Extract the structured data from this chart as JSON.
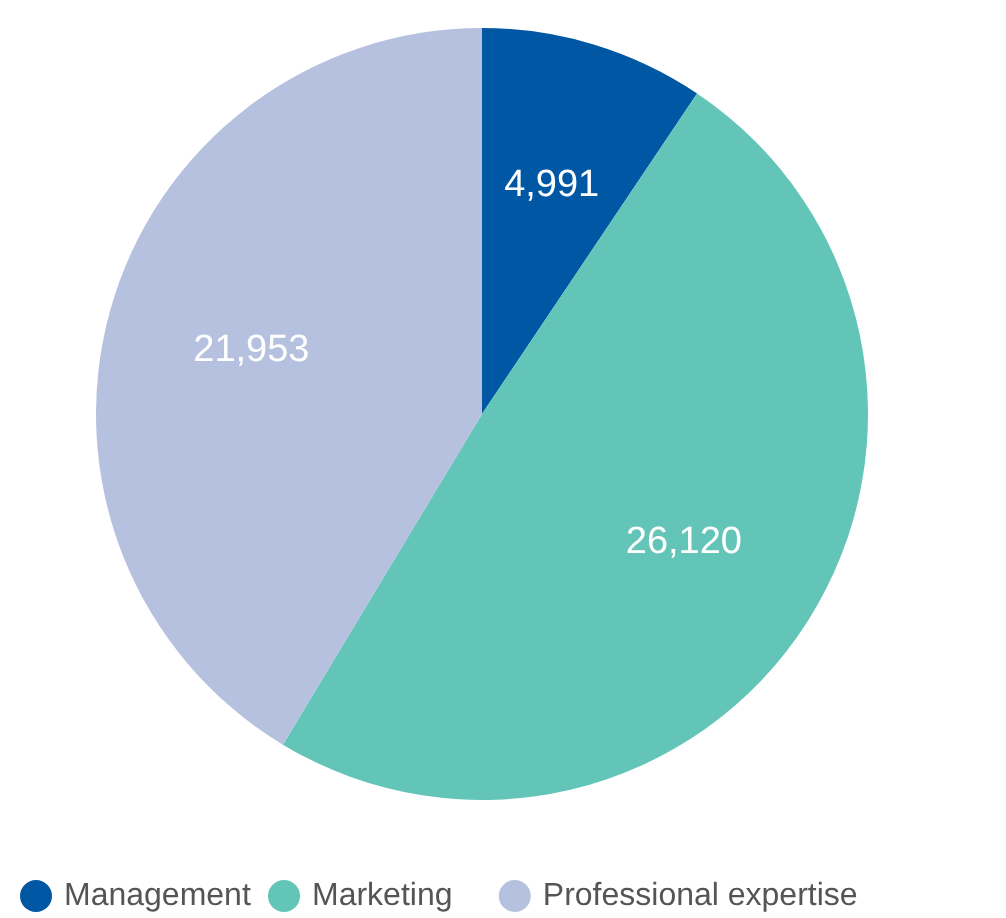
{
  "chart_data": {
    "type": "pie",
    "categories": [
      "Management",
      "Marketing",
      "Professional expertise"
    ],
    "values": [
      4991,
      26120,
      21953
    ],
    "colors": [
      "#0057a3",
      "#63c5b8",
      "#b6c1e0"
    ],
    "value_labels": [
      "4,991",
      "26,120",
      "21,953"
    ],
    "legend": "bottom"
  }
}
